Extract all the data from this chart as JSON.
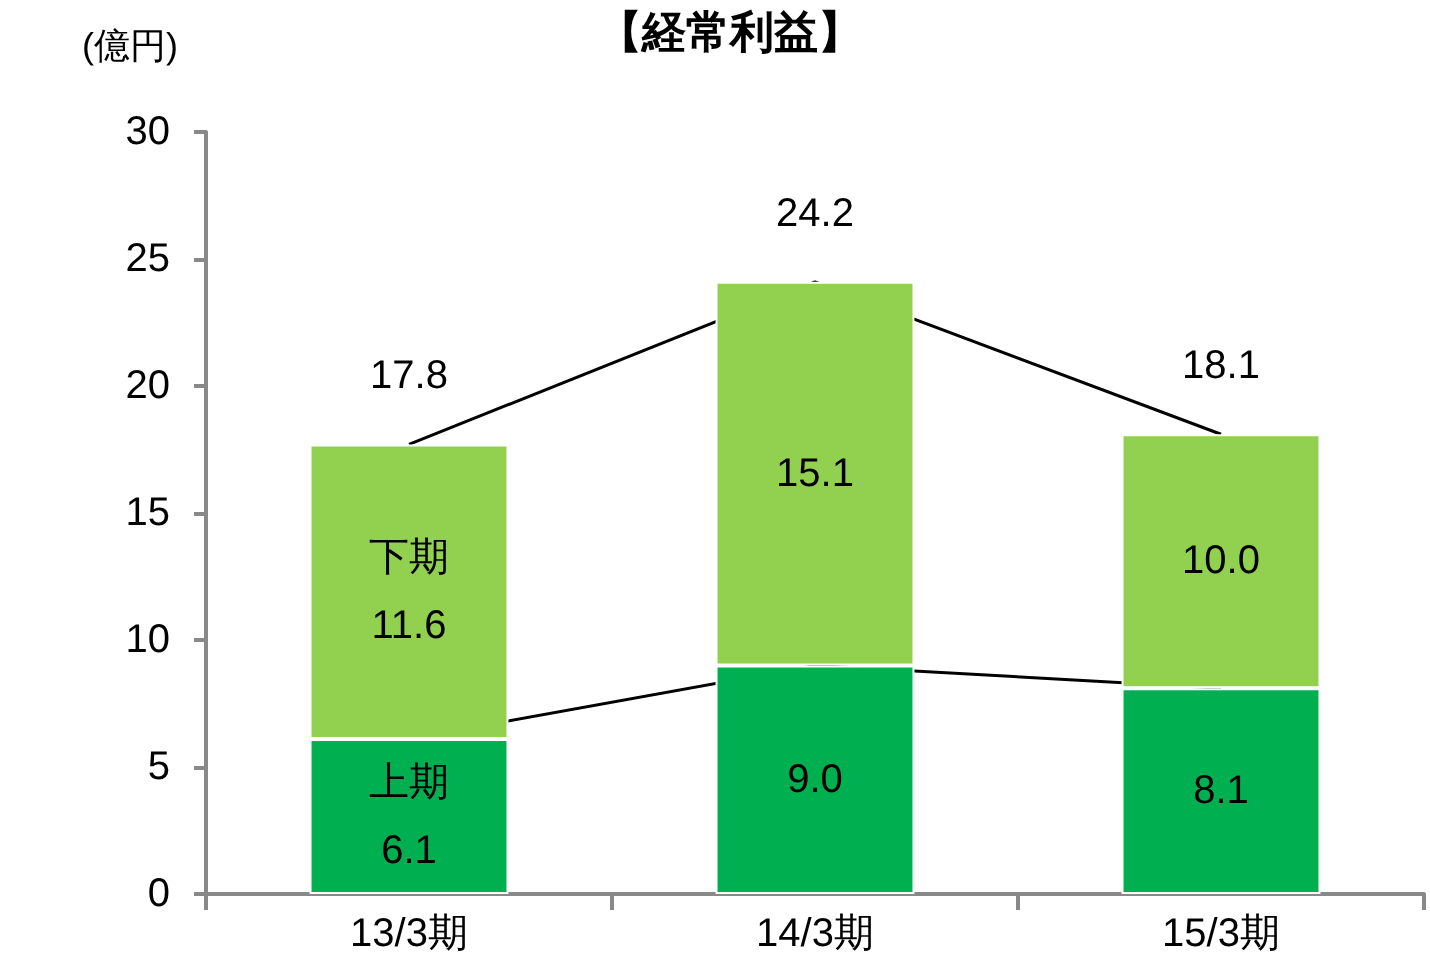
{
  "chart_data": {
    "type": "bar",
    "title": "【経常利益】",
    "ylabel": "(億円)",
    "categories": [
      "13/3期",
      "14/3期",
      "15/3期"
    ],
    "stacked": true,
    "series": [
      {
        "name": "上期",
        "color": "#00b050",
        "values": [
          6.1,
          9.0,
          8.1
        ],
        "value_labels": [
          "6.1",
          "9.0",
          "8.1"
        ]
      },
      {
        "name": "下期",
        "color": "#92d050",
        "values": [
          11.6,
          15.1,
          10.0
        ],
        "value_labels": [
          "11.6",
          "15.1",
          "10.0"
        ]
      }
    ],
    "totals": [
      "17.8",
      "24.2",
      "18.1"
    ],
    "ylim": [
      0,
      30
    ],
    "yticks": [
      0,
      5,
      10,
      15,
      20,
      25,
      30
    ],
    "grid": false,
    "legend": false
  }
}
